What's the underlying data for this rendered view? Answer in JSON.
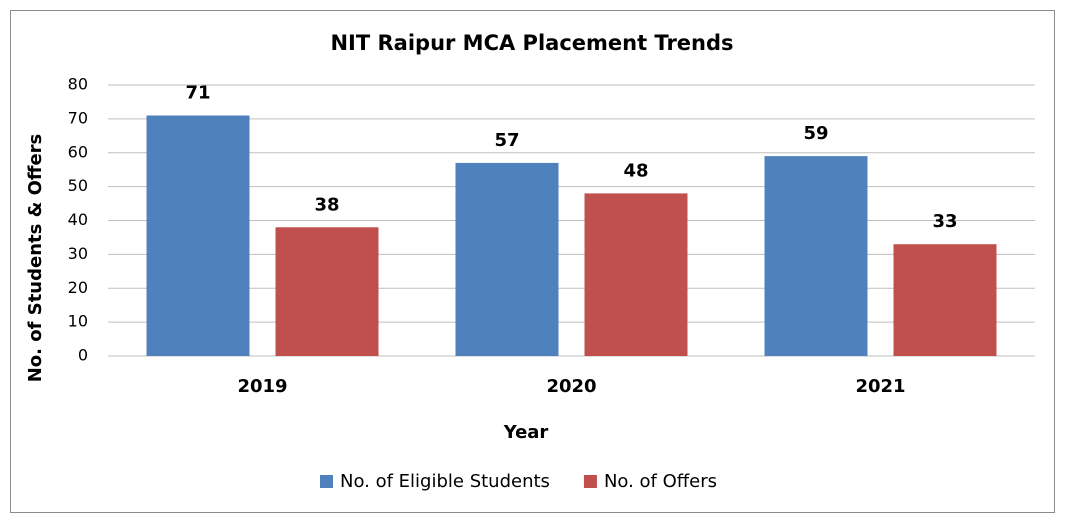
{
  "chart_data": {
    "type": "bar",
    "title": "NIT Raipur MCA Placement Trends",
    "x_label": "Year",
    "y_label": "No. of Students & Offers",
    "categories": [
      "2019",
      "2020",
      "2021"
    ],
    "series": [
      {
        "name": "No. of Eligible Students",
        "color": "#4f81bd",
        "values": [
          71,
          57,
          59
        ]
      },
      {
        "name": "No. of Offers",
        "color": "#c0504d",
        "values": [
          38,
          48,
          33
        ]
      }
    ],
    "ylim": [
      0,
      80
    ],
    "yticks": [
      0,
      10,
      20,
      30,
      40,
      50,
      60,
      70,
      80
    ],
    "grid": true,
    "legend": "bottom"
  }
}
